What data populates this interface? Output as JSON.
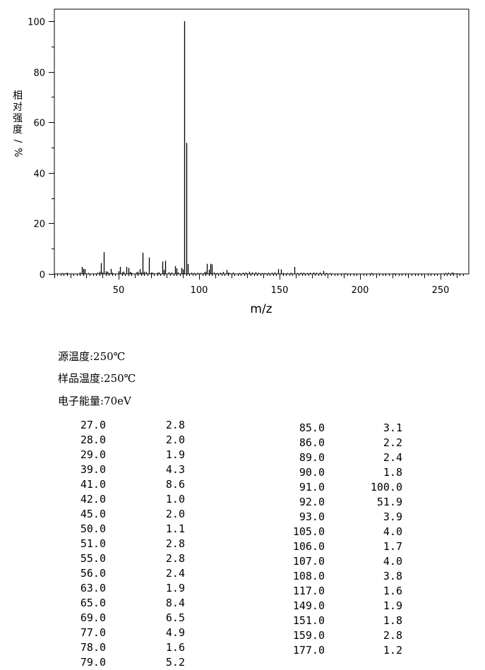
{
  "chart_data": {
    "type": "bar",
    "xlabel": "m/z",
    "ylabel": "相对强度/%",
    "xlim": [
      10,
      265
    ],
    "ylim": [
      0,
      104
    ],
    "xticks": [
      50,
      100,
      150,
      200,
      250
    ],
    "yticks": [
      0,
      20,
      40,
      60,
      80,
      100
    ],
    "grid": false,
    "peaks": [
      {
        "mz": 15,
        "ab": 0.4
      },
      {
        "mz": 17,
        "ab": 0.3
      },
      {
        "mz": 18,
        "ab": 0.5
      },
      {
        "mz": 26,
        "ab": 0.6
      },
      {
        "mz": 27,
        "ab": 2.8
      },
      {
        "mz": 28,
        "ab": 2.0
      },
      {
        "mz": 29,
        "ab": 1.9
      },
      {
        "mz": 31,
        "ab": 0.4
      },
      {
        "mz": 37,
        "ab": 0.5
      },
      {
        "mz": 38,
        "ab": 0.9
      },
      {
        "mz": 39,
        "ab": 4.3
      },
      {
        "mz": 40,
        "ab": 0.6
      },
      {
        "mz": 41,
        "ab": 8.6
      },
      {
        "mz": 42,
        "ab": 1.0
      },
      {
        "mz": 43,
        "ab": 0.9
      },
      {
        "mz": 44,
        "ab": 0.4
      },
      {
        "mz": 45,
        "ab": 2.0
      },
      {
        "mz": 46,
        "ab": 0.5
      },
      {
        "mz": 50,
        "ab": 1.1
      },
      {
        "mz": 51,
        "ab": 2.8
      },
      {
        "mz": 52,
        "ab": 0.7
      },
      {
        "mz": 53,
        "ab": 0.9
      },
      {
        "mz": 55,
        "ab": 2.8
      },
      {
        "mz": 56,
        "ab": 2.4
      },
      {
        "mz": 57,
        "ab": 0.8
      },
      {
        "mz": 58,
        "ab": 0.5
      },
      {
        "mz": 61,
        "ab": 0.6
      },
      {
        "mz": 62,
        "ab": 0.9
      },
      {
        "mz": 63,
        "ab": 1.9
      },
      {
        "mz": 64,
        "ab": 0.6
      },
      {
        "mz": 65,
        "ab": 8.4
      },
      {
        "mz": 66,
        "ab": 0.9
      },
      {
        "mz": 67,
        "ab": 0.8
      },
      {
        "mz": 69,
        "ab": 6.5
      },
      {
        "mz": 70,
        "ab": 0.6
      },
      {
        "mz": 71,
        "ab": 0.5
      },
      {
        "mz": 74,
        "ab": 0.5
      },
      {
        "mz": 75,
        "ab": 0.6
      },
      {
        "mz": 77,
        "ab": 4.9
      },
      {
        "mz": 78,
        "ab": 1.6
      },
      {
        "mz": 79,
        "ab": 5.2
      },
      {
        "mz": 81,
        "ab": 0.7
      },
      {
        "mz": 83,
        "ab": 0.6
      },
      {
        "mz": 85,
        "ab": 3.1
      },
      {
        "mz": 86,
        "ab": 2.2
      },
      {
        "mz": 87,
        "ab": 0.6
      },
      {
        "mz": 89,
        "ab": 2.4
      },
      {
        "mz": 90,
        "ab": 1.8
      },
      {
        "mz": 91,
        "ab": 100.0
      },
      {
        "mz": 92,
        "ab": 51.9
      },
      {
        "mz": 93,
        "ab": 3.9
      },
      {
        "mz": 95,
        "ab": 0.5
      },
      {
        "mz": 97,
        "ab": 0.4
      },
      {
        "mz": 99,
        "ab": 0.5
      },
      {
        "mz": 101,
        "ab": 0.4
      },
      {
        "mz": 103,
        "ab": 0.6
      },
      {
        "mz": 104,
        "ab": 0.9
      },
      {
        "mz": 105,
        "ab": 4.0
      },
      {
        "mz": 106,
        "ab": 1.7
      },
      {
        "mz": 107,
        "ab": 4.0
      },
      {
        "mz": 108,
        "ab": 3.8
      },
      {
        "mz": 109,
        "ab": 0.6
      },
      {
        "mz": 111,
        "ab": 0.4
      },
      {
        "mz": 113,
        "ab": 0.5
      },
      {
        "mz": 115,
        "ab": 0.8
      },
      {
        "mz": 117,
        "ab": 1.6
      },
      {
        "mz": 118,
        "ab": 0.5
      },
      {
        "mz": 119,
        "ab": 0.4
      },
      {
        "mz": 121,
        "ab": 0.6
      },
      {
        "mz": 125,
        "ab": 0.4
      },
      {
        "mz": 127,
        "ab": 0.5
      },
      {
        "mz": 129,
        "ab": 0.6
      },
      {
        "mz": 131,
        "ab": 0.9
      },
      {
        "mz": 133,
        "ab": 0.6
      },
      {
        "mz": 135,
        "ab": 0.7
      },
      {
        "mz": 137,
        "ab": 0.5
      },
      {
        "mz": 139,
        "ab": 0.4
      },
      {
        "mz": 141,
        "ab": 0.4
      },
      {
        "mz": 143,
        "ab": 0.5
      },
      {
        "mz": 145,
        "ab": 0.5
      },
      {
        "mz": 147,
        "ab": 0.6
      },
      {
        "mz": 149,
        "ab": 1.9
      },
      {
        "mz": 151,
        "ab": 1.8
      },
      {
        "mz": 152,
        "ab": 0.4
      },
      {
        "mz": 155,
        "ab": 0.4
      },
      {
        "mz": 157,
        "ab": 0.5
      },
      {
        "mz": 159,
        "ab": 2.8
      },
      {
        "mz": 161,
        "ab": 0.4
      },
      {
        "mz": 163,
        "ab": 0.5
      },
      {
        "mz": 165,
        "ab": 0.5
      },
      {
        "mz": 167,
        "ab": 0.4
      },
      {
        "mz": 169,
        "ab": 0.5
      },
      {
        "mz": 171,
        "ab": 0.6
      },
      {
        "mz": 173,
        "ab": 0.5
      },
      {
        "mz": 175,
        "ab": 0.6
      },
      {
        "mz": 177,
        "ab": 1.2
      },
      {
        "mz": 179,
        "ab": 0.4
      },
      {
        "mz": 181,
        "ab": 0.3
      },
      {
        "mz": 191,
        "ab": 0.3
      },
      {
        "mz": 207,
        "ab": 0.4
      },
      {
        "mz": 221,
        "ab": 0.3
      },
      {
        "mz": 253,
        "ab": 0.4
      },
      {
        "mz": 255,
        "ab": 0.5
      },
      {
        "mz": 257,
        "ab": 0.6
      },
      {
        "mz": 258,
        "ab": 0.4
      },
      {
        "mz": 260,
        "ab": 0.3
      }
    ]
  },
  "conditions": [
    "源温度:250℃",
    "样品温度:250℃",
    "电子能量:70eV"
  ],
  "peak_table": {
    "left": [
      {
        "mz": "27.0",
        "ab": "2.8"
      },
      {
        "mz": "28.0",
        "ab": "2.0"
      },
      {
        "mz": "29.0",
        "ab": "1.9"
      },
      {
        "mz": "39.0",
        "ab": "4.3"
      },
      {
        "mz": "41.0",
        "ab": "8.6"
      },
      {
        "mz": "42.0",
        "ab": "1.0"
      },
      {
        "mz": "45.0",
        "ab": "2.0"
      },
      {
        "mz": "50.0",
        "ab": "1.1"
      },
      {
        "mz": "51.0",
        "ab": "2.8"
      },
      {
        "mz": "55.0",
        "ab": "2.8"
      },
      {
        "mz": "56.0",
        "ab": "2.4"
      },
      {
        "mz": "63.0",
        "ab": "1.9"
      },
      {
        "mz": "65.0",
        "ab": "8.4"
      },
      {
        "mz": "69.0",
        "ab": "6.5"
      },
      {
        "mz": "77.0",
        "ab": "4.9"
      },
      {
        "mz": "78.0",
        "ab": "1.6"
      },
      {
        "mz": "79.0",
        "ab": "5.2"
      }
    ],
    "right": [
      {
        "mz": "85.0",
        "ab": "3.1"
      },
      {
        "mz": "86.0",
        "ab": "2.2"
      },
      {
        "mz": "89.0",
        "ab": "2.4"
      },
      {
        "mz": "90.0",
        "ab": "1.8"
      },
      {
        "mz": "91.0",
        "ab": "100.0"
      },
      {
        "mz": "92.0",
        "ab": "51.9"
      },
      {
        "mz": "93.0",
        "ab": "3.9"
      },
      {
        "mz": "105.0",
        "ab": "4.0"
      },
      {
        "mz": "106.0",
        "ab": "1.7"
      },
      {
        "mz": "107.0",
        "ab": "4.0"
      },
      {
        "mz": "108.0",
        "ab": "3.8"
      },
      {
        "mz": "117.0",
        "ab": "1.6"
      },
      {
        "mz": "149.0",
        "ab": "1.9"
      },
      {
        "mz": "151.0",
        "ab": "1.8"
      },
      {
        "mz": "159.0",
        "ab": "2.8"
      },
      {
        "mz": "177.0",
        "ab": "1.2"
      }
    ]
  }
}
